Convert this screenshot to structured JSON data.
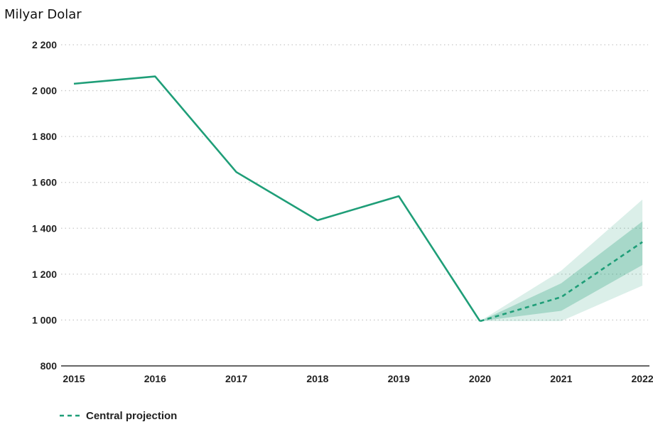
{
  "chart_data": {
    "type": "line",
    "ylabel": "Milyar Dolar",
    "x": [
      "2015",
      "2016",
      "2017",
      "2018",
      "2019",
      "2020",
      "2021",
      "2022"
    ],
    "y_ticks": [
      "800",
      "1 000",
      "1 200",
      "1 400",
      "1 600",
      "1 800",
      "2 000",
      "2 200"
    ],
    "ylim": [
      800,
      2200
    ],
    "grid": true,
    "legend_position": "bottom-left",
    "series": [
      {
        "values": [
          2030,
          2062,
          1645,
          1435,
          1540,
          995,
          null,
          null
        ],
        "color": "#1f9e78",
        "style": "solid"
      },
      {
        "name": "Central projection",
        "x": [
          "2020",
          "2021",
          "2022"
        ],
        "values": [
          995,
          1100,
          1340
        ],
        "color": "#1f9e78",
        "style": "dashed"
      }
    ],
    "projection_band": {
      "x": [
        "2020",
        "2021",
        "2022"
      ],
      "outer_lower": [
        995,
        995,
        1150
      ],
      "outer_upper": [
        995,
        1215,
        1525
      ],
      "inner_lower": [
        995,
        1040,
        1240
      ],
      "inner_upper": [
        995,
        1160,
        1430
      ],
      "color": "#1f9e78"
    }
  }
}
